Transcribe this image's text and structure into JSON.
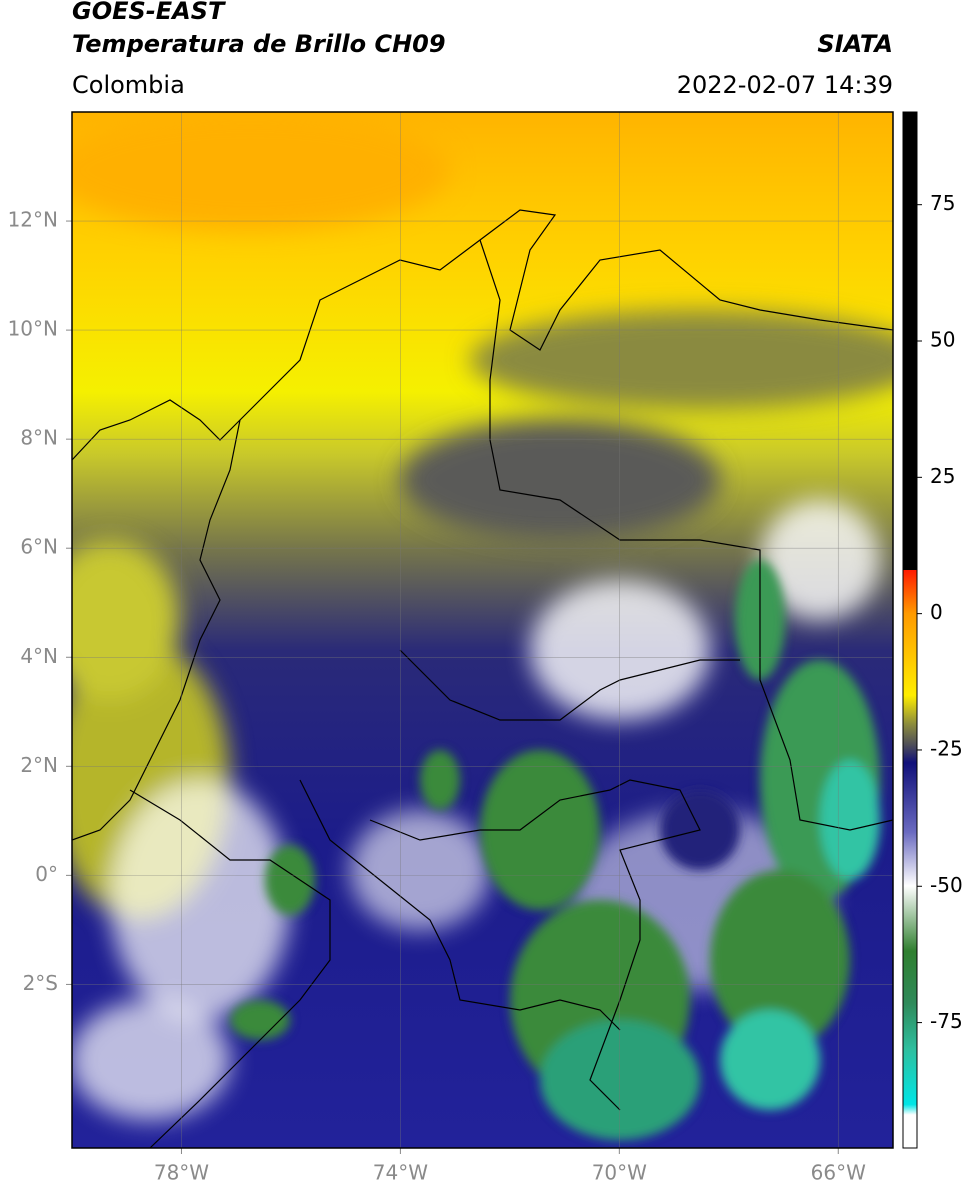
{
  "header": {
    "satellite": "GOES-EAST",
    "product": "Temperatura de Brillo CH09",
    "source": "SIATA",
    "region": "Colombia",
    "datetime": "2022-02-07 14:39"
  },
  "map": {
    "lonlim": [
      -80,
      -65
    ],
    "latlim": [
      -5,
      14
    ],
    "lonticks": [
      {
        "value": -78,
        "label": "78°W"
      },
      {
        "value": -74,
        "label": "74°W"
      },
      {
        "value": -70,
        "label": "70°W"
      },
      {
        "value": -66,
        "label": "66°W"
      }
    ],
    "latticks": [
      {
        "value": 12,
        "label": "12°N"
      },
      {
        "value": 10,
        "label": "10°N"
      },
      {
        "value": 8,
        "label": "8°N"
      },
      {
        "value": 6,
        "label": "6°N"
      },
      {
        "value": 4,
        "label": "4°N"
      },
      {
        "value": 2,
        "label": "2°N"
      },
      {
        "value": 0,
        "label": "0°"
      },
      {
        "value": -2,
        "label": "2°S"
      }
    ],
    "grid": true
  },
  "colorbar": {
    "lim": [
      -98,
      92
    ],
    "ticks": [
      75,
      50,
      25,
      0,
      -25,
      -50,
      -75
    ]
  }
}
